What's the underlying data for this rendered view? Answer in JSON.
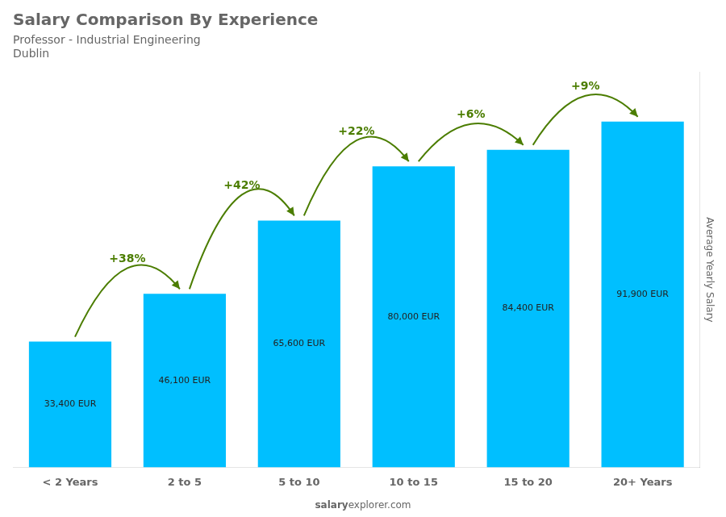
{
  "chart_data": {
    "type": "bar",
    "title": "Salary Comparison By Experience",
    "subtitle": [
      "Professor - Industrial Engineering",
      "Dublin"
    ],
    "ylabel": "Average Yearly Salary",
    "categories": [
      "< 2 Years",
      "2 to 5",
      "5 to 10",
      "10 to 15",
      "15 to 20",
      "20+ Years"
    ],
    "values": [
      33400,
      46100,
      65600,
      80000,
      84400,
      91900
    ],
    "value_labels": [
      "33,400 EUR",
      "46,100 EUR",
      "65,600 EUR",
      "80,000 EUR",
      "84,400 EUR",
      "91,900 EUR"
    ],
    "data_labels": true,
    "color": "#00bfff",
    "ylim": [
      0,
      105000
    ],
    "grid": false,
    "tick_labels": "x",
    "annotations": [
      {
        "text": "+38%",
        "from": "< 2 Years",
        "to": "2 to 5"
      },
      {
        "text": "+42%",
        "from": "2 to 5",
        "to": "5 to 10"
      },
      {
        "text": "+22%",
        "from": "5 to 10",
        "to": "10 to 15"
      },
      {
        "text": "+6%",
        "from": "10 to 15",
        "to": "15 to 20"
      },
      {
        "text": "+9%",
        "from": "15 to 20",
        "to": "20+ Years"
      }
    ],
    "footer": [
      "salary",
      "explorer.com"
    ]
  }
}
